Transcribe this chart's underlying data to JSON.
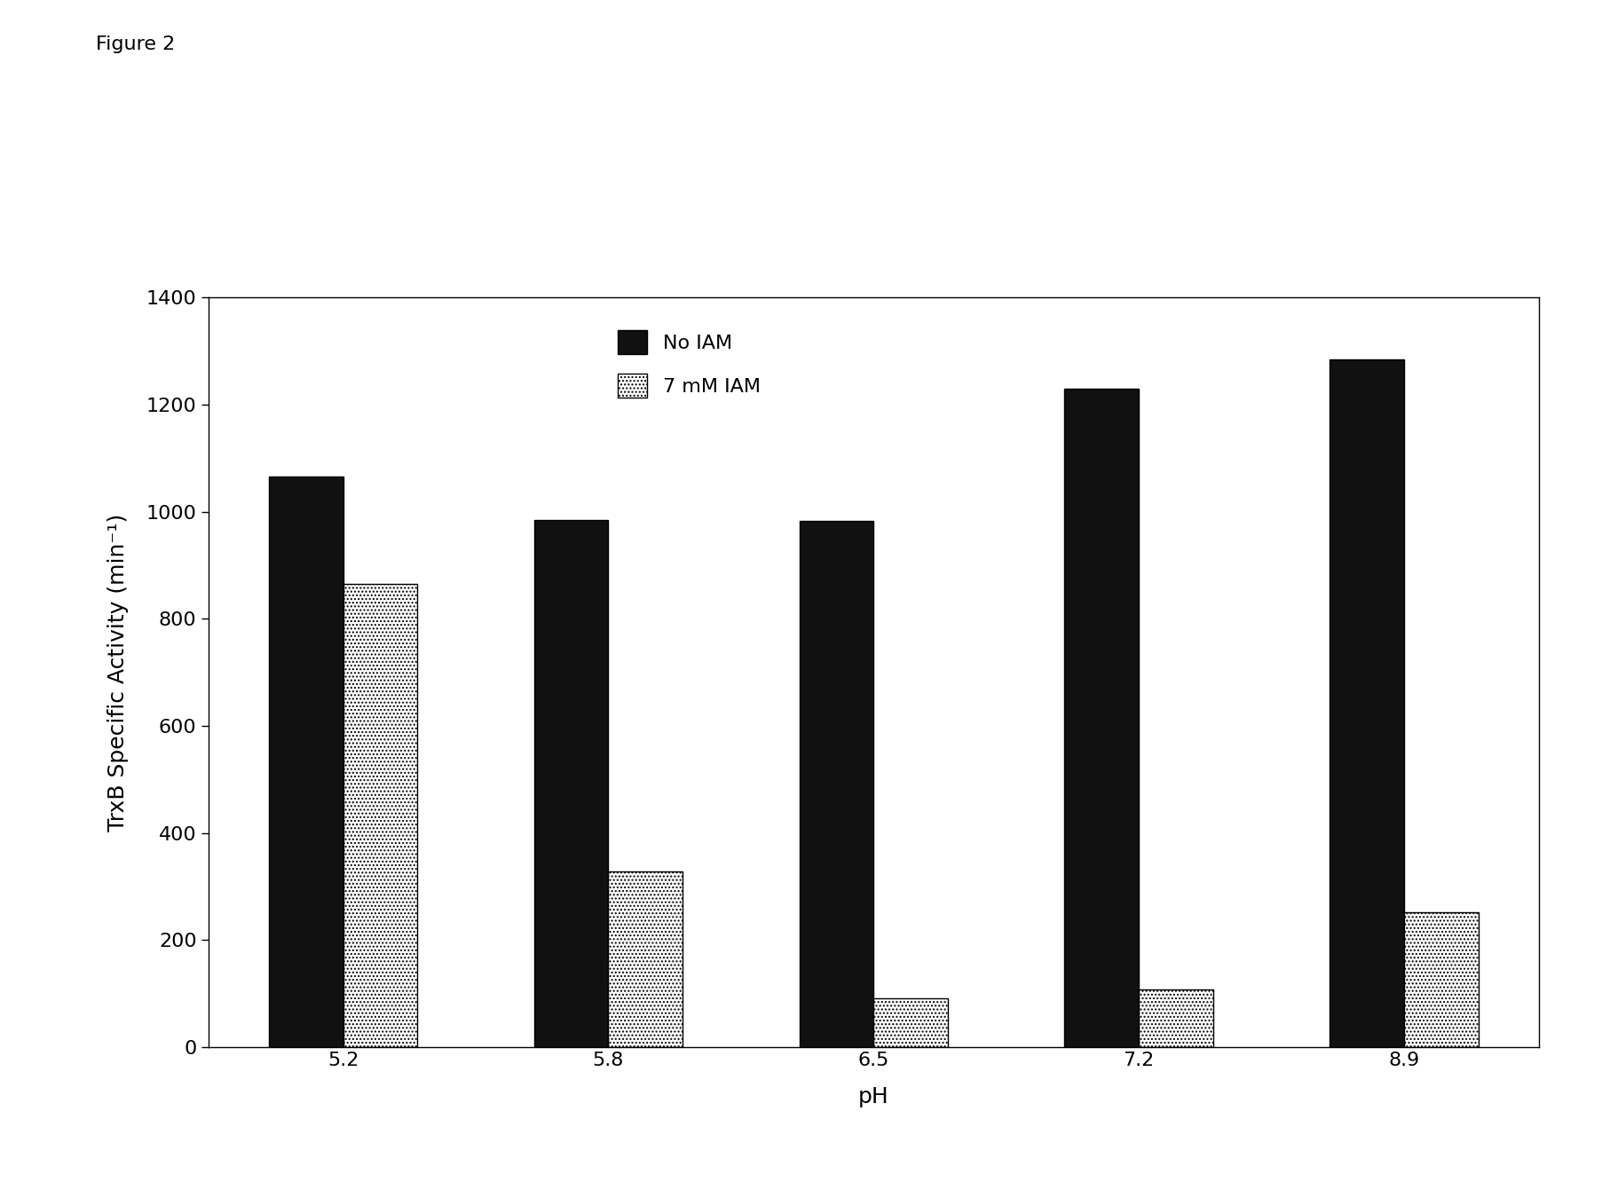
{
  "categories": [
    "5.2",
    "5.8",
    "6.5",
    "7.2",
    "8.9"
  ],
  "no_iam": [
    1065,
    985,
    982,
    1230,
    1285
  ],
  "iam_7mm": [
    865,
    328,
    92,
    108,
    252
  ],
  "xlabel": "pH",
  "ylabel": "TrxB Specific Activity (min⁻¹)",
  "ylim": [
    0,
    1400
  ],
  "yticks": [
    0,
    200,
    400,
    600,
    800,
    1000,
    1200,
    1400
  ],
  "bar_color_no_iam": "#111111",
  "bar_width": 0.28,
  "figure_label": "Figure 2",
  "legend_no_iam": "No IAM",
  "legend_iam": "7 mM IAM",
  "background_color": "#ffffff",
  "figure_label_fontsize": 16,
  "label_fontsize": 18,
  "tick_fontsize": 16,
  "legend_fontsize": 16,
  "hatch_pattern": "...."
}
